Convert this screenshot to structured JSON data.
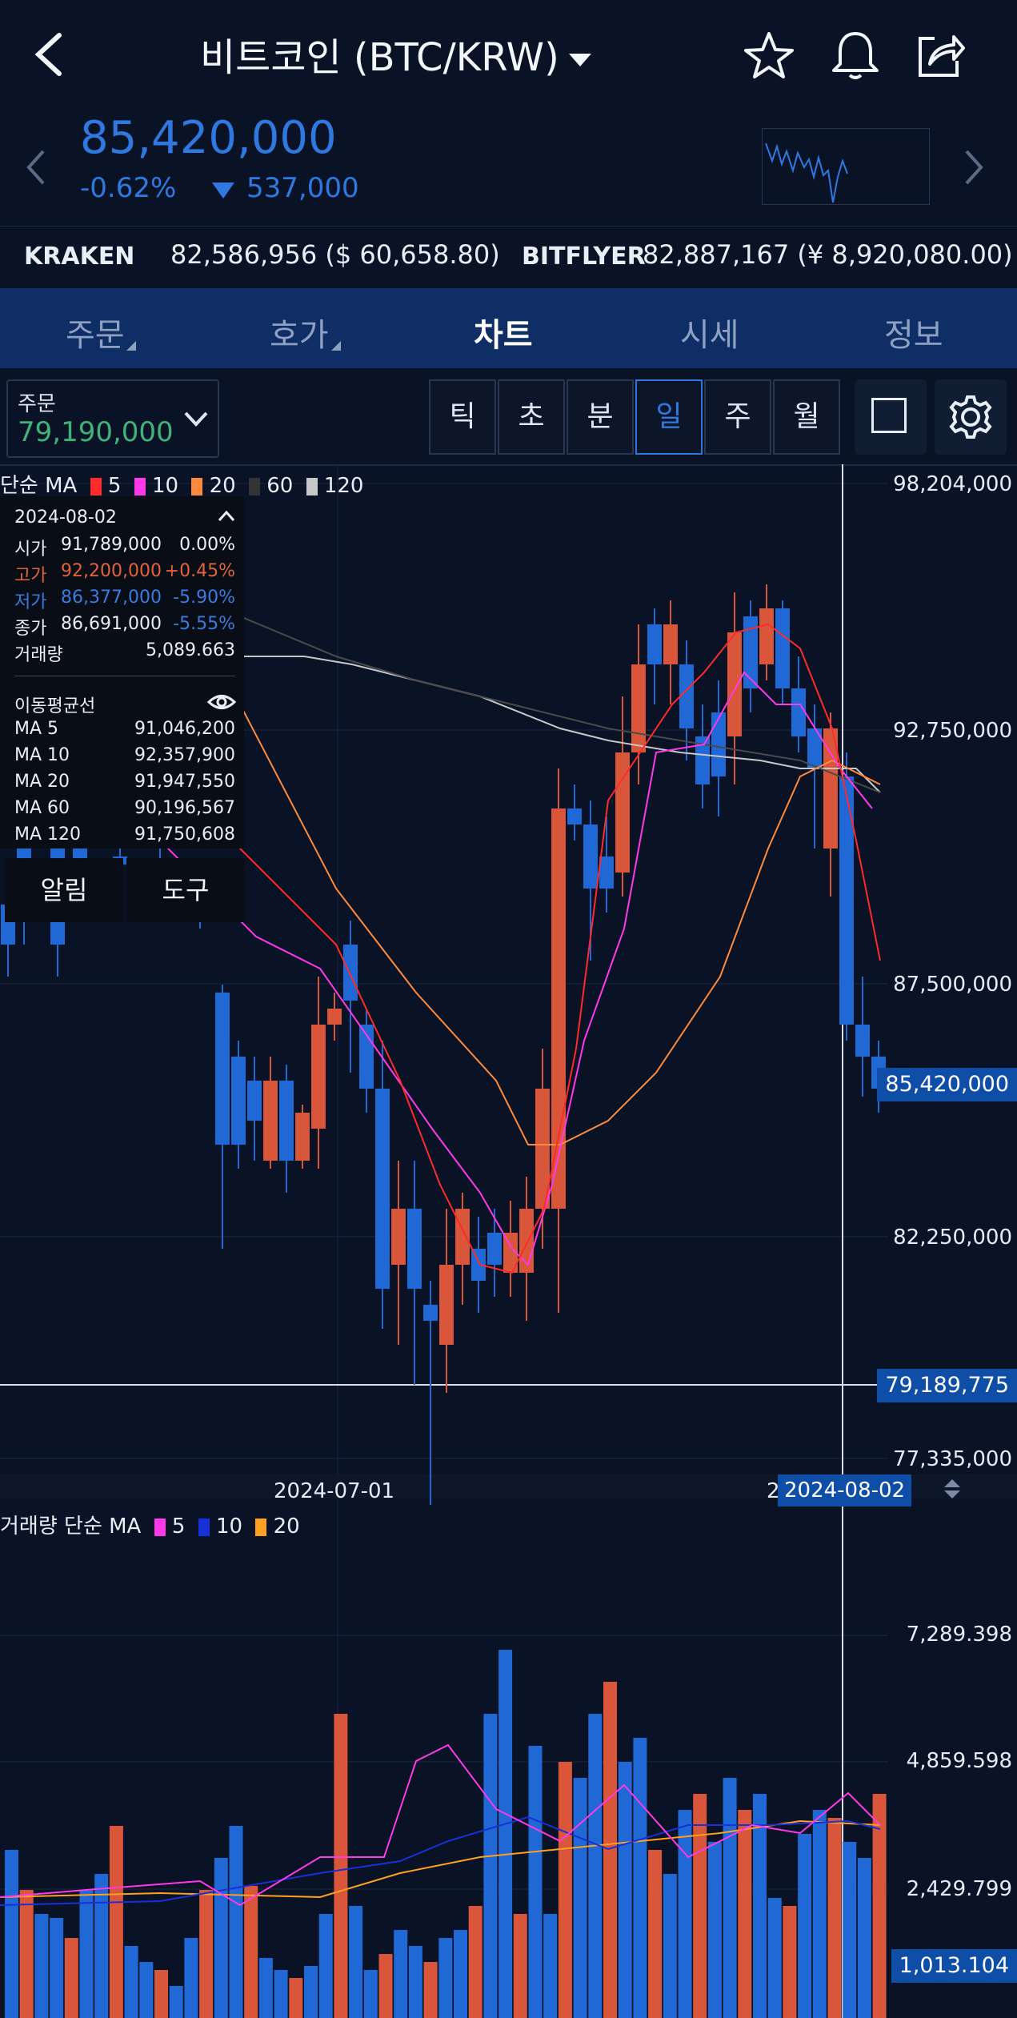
{
  "header": {
    "title": "비트코인 (BTC/KRW)",
    "back_icon": "back-chevron-icon",
    "icons": [
      "star-icon",
      "bell-icon",
      "share-icon"
    ]
  },
  "price": {
    "current": "85,420,000",
    "change_pct": "-0.62%",
    "change_abs": "537,000",
    "color": "#2f78e0"
  },
  "exchanges": [
    {
      "name": "KRAKEN",
      "value": "82,586,956 ($ 60,658.80)"
    },
    {
      "name": "BITFLYER",
      "value": "82,887,167 (¥ 8,920,080.00)"
    }
  ],
  "tabs": [
    "주문",
    "호가",
    "차트",
    "시세",
    "정보"
  ],
  "active_tab": "차트",
  "toolbar": {
    "order_label": "주문",
    "order_value": "79,190,000",
    "periods": [
      "틱",
      "초",
      "분",
      "일",
      "주",
      "월"
    ],
    "selected_period": "일"
  },
  "price_chart": {
    "legend": {
      "prefix": "단순 MA",
      "items": [
        "5",
        "10",
        "20",
        "60",
        "120"
      ]
    },
    "y_labels": [
      "98,204,000",
      "92,750,000",
      "87,500,000",
      "82,250,000",
      "77,335,000"
    ],
    "current_badge": "85,420,000",
    "cursor_badge": "79,189,775",
    "x_label": "2024-07-01",
    "date_badge": "2024-08-02",
    "date_badge_prefix": "2"
  },
  "info_panel": {
    "date": "2024-08-02",
    "rows": [
      {
        "label": "시가",
        "value": "91,789,000",
        "pct": "0.00%",
        "color": "#e9eef6"
      },
      {
        "label": "고가",
        "value": "92,200,000",
        "pct": "+0.45%",
        "color": "#e2633a"
      },
      {
        "label": "저가",
        "value": "86,377,000",
        "pct": "-5.90%",
        "color": "#3b7be0"
      },
      {
        "label": "종가",
        "value": "86,691,000",
        "pct": "-5.55%",
        "color": "#3b7be0"
      }
    ],
    "volume_label": "거래량",
    "volume_value": "5,089.663",
    "ma_title": "이동평균선",
    "ma_rows": [
      {
        "label": "MA 5",
        "value": "91,046,200"
      },
      {
        "label": "MA 10",
        "value": "92,357,900"
      },
      {
        "label": "MA 20",
        "value": "91,947,550"
      },
      {
        "label": "MA 60",
        "value": "90,196,567"
      },
      {
        "label": "MA 120",
        "value": "91,750,608"
      }
    ],
    "buttons": [
      "알림",
      "도구"
    ]
  },
  "volume_chart": {
    "legend": {
      "prefix": "거래량 단순 MA",
      "items": [
        "5",
        "10",
        "20"
      ]
    },
    "y_labels": [
      "7,289.398",
      "4,859.598",
      "2,429.799"
    ],
    "current_badge": "1,013.104"
  },
  "colors": {
    "up": "#d9563a",
    "down": "#1f68d6",
    "ma5": "#ff2a2a",
    "ma10": "#ff38e8",
    "ma20": "#ff8a3a",
    "ma60": "#4a4a4a",
    "ma120": "#c8c8c8"
  }
}
